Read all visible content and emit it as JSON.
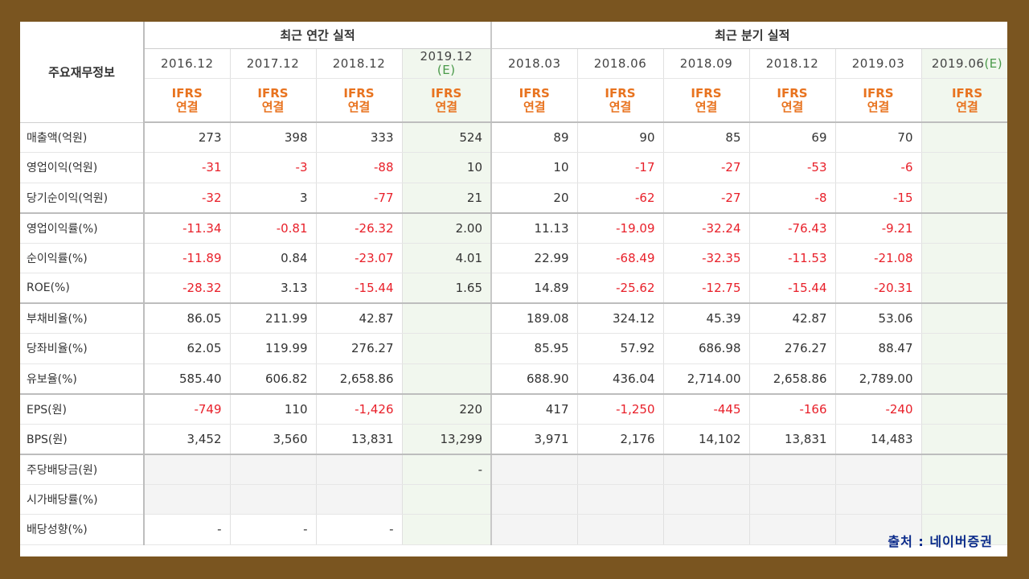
{
  "header": {
    "row_label": "주요재무정보",
    "annual_title": "최근 연간 실적",
    "quarter_title": "최근 분기 실적",
    "annual_periods": [
      "2016.12",
      "2017.12",
      "2018.12",
      "2019.12"
    ],
    "annual_estimate_tag": "(E)",
    "quarter_periods": [
      "2018.03",
      "2018.06",
      "2018.09",
      "2018.12",
      "2019.03",
      "2019.06"
    ],
    "quarter_estimate_tag": "(E)",
    "ifrs_line1": "IFRS",
    "ifrs_line2": "연결"
  },
  "rows": [
    {
      "label": "매출액(억원)",
      "values": [
        "273",
        "398",
        "333",
        "524",
        "89",
        "90",
        "85",
        "69",
        "70",
        ""
      ]
    },
    {
      "label": "영업이익(억원)",
      "values": [
        "-31",
        "-3",
        "-88",
        "10",
        "10",
        "-17",
        "-27",
        "-53",
        "-6",
        ""
      ]
    },
    {
      "label": "당기순이익(억원)",
      "values": [
        "-32",
        "3",
        "-77",
        "21",
        "20",
        "-62",
        "-27",
        "-8",
        "-15",
        ""
      ]
    },
    {
      "label": "영업이익률(%)",
      "values": [
        "-11.34",
        "-0.81",
        "-26.32",
        "2.00",
        "11.13",
        "-19.09",
        "-32.24",
        "-76.43",
        "-9.21",
        ""
      ]
    },
    {
      "label": "순이익률(%)",
      "values": [
        "-11.89",
        "0.84",
        "-23.07",
        "4.01",
        "22.99",
        "-68.49",
        "-32.35",
        "-11.53",
        "-21.08",
        ""
      ]
    },
    {
      "label": "ROE(%)",
      "values": [
        "-28.32",
        "3.13",
        "-15.44",
        "1.65",
        "14.89",
        "-25.62",
        "-12.75",
        "-15.44",
        "-20.31",
        ""
      ]
    },
    {
      "label": "부채비율(%)",
      "values": [
        "86.05",
        "211.99",
        "42.87",
        "",
        "189.08",
        "324.12",
        "45.39",
        "42.87",
        "53.06",
        ""
      ]
    },
    {
      "label": "당좌비율(%)",
      "values": [
        "62.05",
        "119.99",
        "276.27",
        "",
        "85.95",
        "57.92",
        "686.98",
        "276.27",
        "88.47",
        ""
      ]
    },
    {
      "label": "유보율(%)",
      "values": [
        "585.40",
        "606.82",
        "2,658.86",
        "",
        "688.90",
        "436.04",
        "2,714.00",
        "2,658.86",
        "2,789.00",
        ""
      ]
    },
    {
      "label": "EPS(원)",
      "values": [
        "-749",
        "110",
        "-1,426",
        "220",
        "417",
        "-1,250",
        "-445",
        "-166",
        "-240",
        ""
      ]
    },
    {
      "label": "BPS(원)",
      "values": [
        "3,452",
        "3,560",
        "13,831",
        "13,299",
        "3,971",
        "2,176",
        "14,102",
        "13,831",
        "14,483",
        ""
      ]
    },
    {
      "label": "주당배당금(원)",
      "values": [
        "",
        "",
        "",
        "-",
        "",
        "",
        "",
        "",
        "",
        ""
      ]
    },
    {
      "label": "시가배당률(%)",
      "values": [
        "",
        "",
        "",
        "",
        "",
        "",
        "",
        "",
        "",
        ""
      ]
    },
    {
      "label": "배당성향(%)",
      "values": [
        "-",
        "-",
        "-",
        "",
        "",
        "",
        "",
        "",
        "",
        ""
      ]
    }
  ],
  "source": "출처 : 네이버증권",
  "colors": {
    "negative": "#e8202a",
    "ifrs": "#e8731f",
    "estimate_bg": "#f1f7ee",
    "frame": "#7a5520"
  }
}
